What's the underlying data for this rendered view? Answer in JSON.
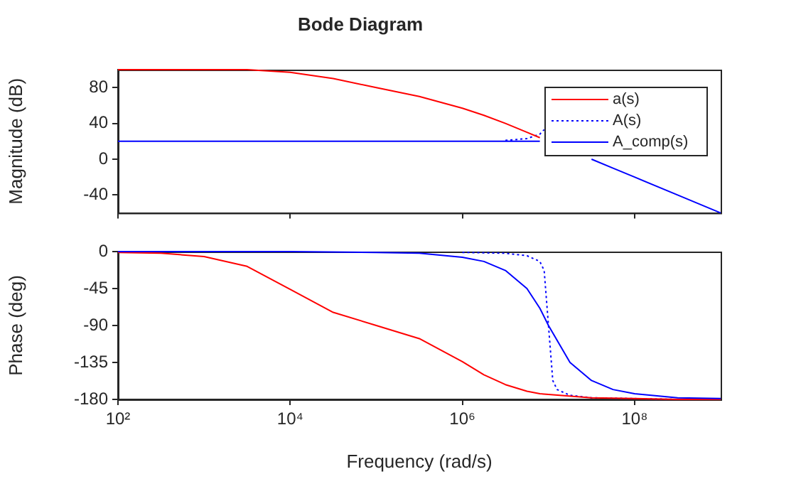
{
  "chart_data": [
    {
      "type": "line",
      "title": "Bode Diagram",
      "ylabel": "Magnitude (dB)",
      "log": "x",
      "xlim": [
        100,
        1000000000
      ],
      "xticks": [
        100,
        10000,
        1000000,
        100000000
      ],
      "ylim": [
        -60,
        100
      ],
      "yticks": [
        -40,
        0,
        40,
        80
      ],
      "tick_labels": "y",
      "legend": "top right",
      "series": [
        {
          "name": "a(s)",
          "color": "#ff0000",
          "line_style": "solid",
          "x": [
            100,
            316,
            1000,
            3162,
            10000,
            31623,
            100000,
            316228,
            1000000,
            1778279,
            3162278,
            5623413,
            7943282
          ],
          "values": [
            100,
            100,
            100,
            100,
            97,
            90,
            80,
            70,
            57,
            49,
            40,
            30,
            24
          ]
        },
        {
          "name": "A(s)",
          "color": "#0000ff",
          "line_style": "dotted",
          "x": [
            3162278,
            5623413,
            7943282,
            8912509
          ],
          "values": [
            21,
            23,
            28,
            33
          ]
        },
        {
          "name": "A_comp(s)",
          "color": "#0000ff",
          "line_style": "solid",
          "x": [
            100,
            10000,
            100000,
            1000000,
            3162278,
            5623413,
            7943282,
            10000000,
            31622777,
            56234133,
            100000000,
            316227766,
            1000000000
          ],
          "values": [
            20,
            20,
            20,
            20,
            20,
            20,
            20,
            null,
            0,
            -10,
            -20,
            -40,
            -60
          ]
        }
      ]
    },
    {
      "type": "line",
      "xlabel": "Frequency (rad/s)",
      "ylabel": "Phase (deg)",
      "log": "x",
      "xlim": [
        100,
        1000000000
      ],
      "xticks": [
        {
          "value": 100,
          "label": "10²"
        },
        {
          "value": 10000,
          "label": "10⁴"
        },
        {
          "value": 1000000,
          "label": "10⁶"
        },
        {
          "value": 100000000,
          "label": "10⁸"
        }
      ],
      "ylim": [
        -180,
        0
      ],
      "yticks": [
        -180,
        -135,
        -90,
        -45,
        0
      ],
      "series": [
        {
          "color": "#ff0000",
          "line_style": "solid",
          "x": [
            100,
            316,
            1000,
            3162,
            10000,
            31623,
            100000,
            316228,
            1000000,
            1778279,
            3162278,
            5623413,
            7943282,
            10000000,
            31622777,
            100000000,
            316227766,
            1000000000
          ],
          "values": [
            -1,
            -2,
            -6,
            -18,
            -46,
            -74,
            -90,
            -106,
            -134,
            -150,
            -162,
            -170,
            -173,
            -174,
            -178,
            -179,
            -180,
            -180
          ]
        },
        {
          "color": "#0000ff",
          "line_style": "dotted",
          "x": [
            1000000,
            3162278,
            5623413,
            7943282,
            8912509,
            10000000,
            11220185,
            12589254,
            17782794,
            31622777,
            100000000,
            316227766,
            1000000000
          ],
          "values": [
            -1,
            -2,
            -5,
            -12,
            -23,
            -90,
            -157,
            -168,
            -175,
            -178,
            -179,
            -180,
            -180
          ]
        },
        {
          "color": "#0000ff",
          "line_style": "solid",
          "x": [
            100,
            10000,
            100000,
            316228,
            1000000,
            1778279,
            3162278,
            5623413,
            7943282,
            10000000,
            17782794,
            31622777,
            56234133,
            100000000,
            316227766,
            1000000000
          ],
          "values": [
            0,
            0,
            -1,
            -2,
            -7,
            -12,
            -23,
            -45,
            -69,
            -90,
            -135,
            -157,
            -168,
            -173,
            -178,
            -179
          ]
        }
      ]
    }
  ]
}
